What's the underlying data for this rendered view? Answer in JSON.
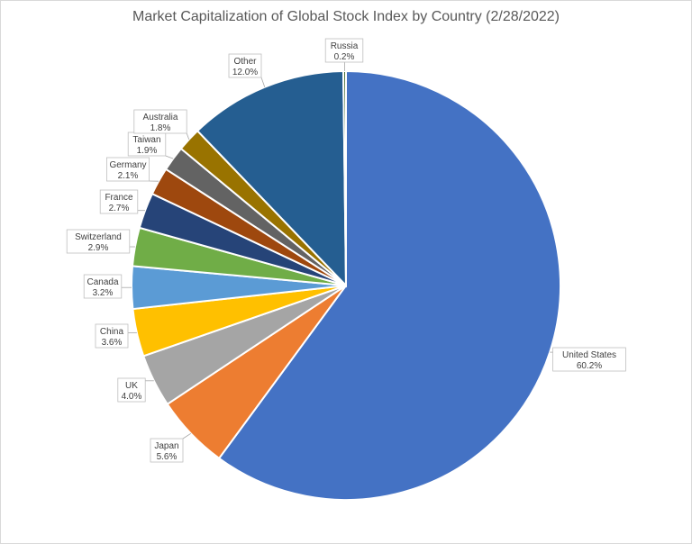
{
  "chart_data": {
    "type": "pie",
    "title": "Market Capitalization of Global Stock Index by Country (2/28/2022)",
    "slices": [
      {
        "name": "United States",
        "value": 60.2,
        "label": "60.2%",
        "color": "#4472c4"
      },
      {
        "name": "Japan",
        "value": 5.6,
        "label": "5.6%",
        "color": "#ed7d31"
      },
      {
        "name": "UK",
        "value": 4.0,
        "label": "4.0%",
        "color": "#a5a5a5"
      },
      {
        "name": "China",
        "value": 3.6,
        "label": "3.6%",
        "color": "#ffc000"
      },
      {
        "name": "Canada",
        "value": 3.2,
        "label": "3.2%",
        "color": "#5b9bd5"
      },
      {
        "name": "Switzerland",
        "value": 2.9,
        "label": "2.9%",
        "color": "#70ad47"
      },
      {
        "name": "France",
        "value": 2.7,
        "label": "2.7%",
        "color": "#264478"
      },
      {
        "name": "Germany",
        "value": 2.1,
        "label": "2.1%",
        "color": "#9e480e"
      },
      {
        "name": "Taiwan",
        "value": 1.9,
        "label": "1.9%",
        "color": "#636363"
      },
      {
        "name": "Australia",
        "value": 1.8,
        "label": "1.8%",
        "color": "#997300"
      },
      {
        "name": "Other",
        "value": 12.0,
        "label": "12.0%",
        "color": "#255e91"
      },
      {
        "name": "Russia",
        "value": 0.2,
        "label": "0.2%",
        "color": "#43682b"
      }
    ]
  }
}
